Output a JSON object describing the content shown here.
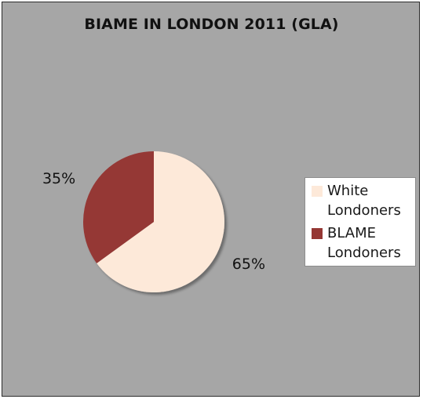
{
  "chart_data": {
    "type": "pie",
    "title": "BIAME IN LONDON 2011 (GLA)",
    "slices": [
      {
        "label": "White Londoners",
        "value": 65,
        "value_label": "65%",
        "color": "#fde9d9"
      },
      {
        "label": "BLAME Londoners",
        "value": 35,
        "value_label": "35%",
        "color": "#953734"
      }
    ],
    "legend_position": "right"
  },
  "legend": {
    "item0_line1": "White",
    "item0_line2": "Londoners",
    "item1_line1": "BLAME",
    "item1_line2": "Londoners"
  }
}
